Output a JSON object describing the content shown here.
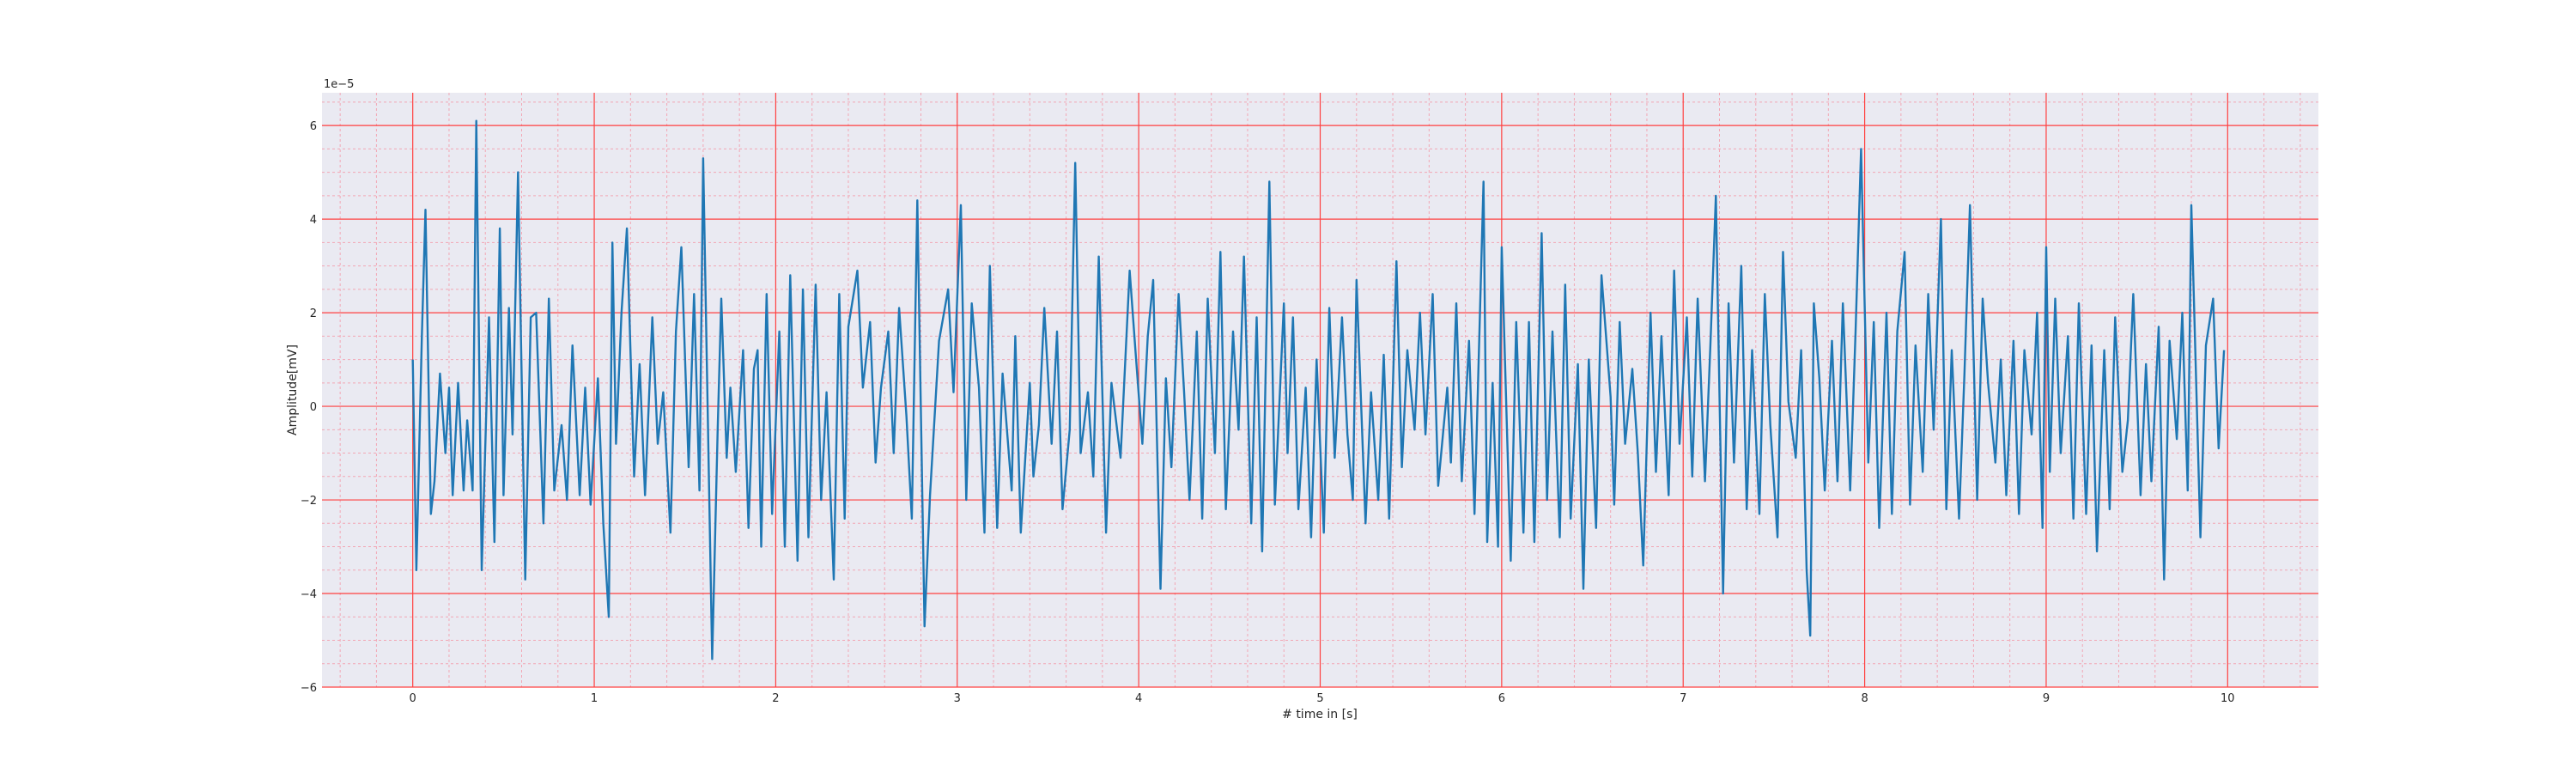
{
  "chart_data": {
    "type": "line",
    "title": "",
    "xlabel": "# time in [s]",
    "ylabel": "Amplitude[mV]",
    "y_offset_label": "1e−5",
    "xlim": [
      -0.5,
      10.5
    ],
    "ylim": [
      -6,
      6.7
    ],
    "xticks": [
      0,
      1,
      2,
      3,
      4,
      5,
      6,
      7,
      8,
      9,
      10
    ],
    "yticks": [
      -6,
      -4,
      -2,
      0,
      2,
      4,
      6
    ],
    "grid": true,
    "minor_grid": true,
    "colors": {
      "line": "#1f77b4",
      "background": "#eaeaf2",
      "major_grid": "#ff4040",
      "minor_grid": "#f2a6b4"
    },
    "series": [
      {
        "points": [
          [
            0.0,
            1.0
          ],
          [
            0.02,
            -3.5
          ],
          [
            0.05,
            1.5
          ],
          [
            0.07,
            4.2
          ],
          [
            0.1,
            -2.3
          ],
          [
            0.12,
            -1.6
          ],
          [
            0.15,
            0.7
          ],
          [
            0.18,
            -1.0
          ],
          [
            0.2,
            0.4
          ],
          [
            0.22,
            -1.9
          ],
          [
            0.25,
            0.5
          ],
          [
            0.28,
            -1.8
          ],
          [
            0.3,
            -0.3
          ],
          [
            0.33,
            -1.8
          ],
          [
            0.35,
            6.1
          ],
          [
            0.38,
            -3.5
          ],
          [
            0.42,
            1.9
          ],
          [
            0.45,
            -2.9
          ],
          [
            0.48,
            3.8
          ],
          [
            0.5,
            -1.9
          ],
          [
            0.53,
            2.1
          ],
          [
            0.55,
            -0.6
          ],
          [
            0.58,
            5.0
          ],
          [
            0.62,
            -3.7
          ],
          [
            0.65,
            1.9
          ],
          [
            0.68,
            2.0
          ],
          [
            0.72,
            -2.5
          ],
          [
            0.75,
            2.3
          ],
          [
            0.78,
            -1.8
          ],
          [
            0.82,
            -0.4
          ],
          [
            0.85,
            -2.0
          ],
          [
            0.88,
            1.3
          ],
          [
            0.92,
            -1.9
          ],
          [
            0.95,
            0.4
          ],
          [
            0.98,
            -2.1
          ],
          [
            1.02,
            0.6
          ],
          [
            1.05,
            -2.5
          ],
          [
            1.08,
            -4.5
          ],
          [
            1.1,
            3.5
          ],
          [
            1.12,
            -0.8
          ],
          [
            1.15,
            2.0
          ],
          [
            1.18,
            3.8
          ],
          [
            1.22,
            -1.5
          ],
          [
            1.25,
            0.9
          ],
          [
            1.28,
            -1.9
          ],
          [
            1.32,
            1.9
          ],
          [
            1.35,
            -0.8
          ],
          [
            1.38,
            0.3
          ],
          [
            1.42,
            -2.7
          ],
          [
            1.45,
            1.6
          ],
          [
            1.48,
            3.4
          ],
          [
            1.52,
            -1.3
          ],
          [
            1.55,
            2.4
          ],
          [
            1.58,
            -1.8
          ],
          [
            1.6,
            5.3
          ],
          [
            1.62,
            1.0
          ],
          [
            1.65,
            -5.4
          ],
          [
            1.68,
            -0.5
          ],
          [
            1.7,
            2.3
          ],
          [
            1.73,
            -1.1
          ],
          [
            1.75,
            0.4
          ],
          [
            1.78,
            -1.4
          ],
          [
            1.82,
            1.2
          ],
          [
            1.85,
            -2.6
          ],
          [
            1.88,
            0.8
          ],
          [
            1.9,
            1.2
          ],
          [
            1.92,
            -3.0
          ],
          [
            1.95,
            2.4
          ],
          [
            1.98,
            -2.3
          ],
          [
            2.02,
            1.6
          ],
          [
            2.05,
            -3.0
          ],
          [
            2.08,
            2.8
          ],
          [
            2.12,
            -3.3
          ],
          [
            2.15,
            2.5
          ],
          [
            2.18,
            -2.8
          ],
          [
            2.22,
            2.6
          ],
          [
            2.25,
            -2.0
          ],
          [
            2.28,
            0.3
          ],
          [
            2.32,
            -3.7
          ],
          [
            2.35,
            2.4
          ],
          [
            2.38,
            -2.4
          ],
          [
            2.4,
            1.7
          ],
          [
            2.45,
            2.9
          ],
          [
            2.48,
            0.4
          ],
          [
            2.52,
            1.8
          ],
          [
            2.55,
            -1.2
          ],
          [
            2.58,
            0.4
          ],
          [
            2.62,
            1.6
          ],
          [
            2.65,
            -1.0
          ],
          [
            2.68,
            2.1
          ],
          [
            2.72,
            -0.2
          ],
          [
            2.75,
            -2.4
          ],
          [
            2.78,
            4.4
          ],
          [
            2.82,
            -4.7
          ],
          [
            2.85,
            -1.9
          ],
          [
            2.9,
            1.4
          ],
          [
            2.95,
            2.5
          ],
          [
            2.98,
            0.3
          ],
          [
            3.02,
            4.3
          ],
          [
            3.05,
            -2.0
          ],
          [
            3.08,
            2.2
          ],
          [
            3.12,
            0.4
          ],
          [
            3.15,
            -2.7
          ],
          [
            3.18,
            3.0
          ],
          [
            3.22,
            -2.6
          ],
          [
            3.25,
            0.7
          ],
          [
            3.3,
            -1.8
          ],
          [
            3.32,
            1.5
          ],
          [
            3.35,
            -2.7
          ],
          [
            3.4,
            0.5
          ],
          [
            3.42,
            -1.5
          ],
          [
            3.45,
            -0.4
          ],
          [
            3.48,
            2.1
          ],
          [
            3.52,
            -0.8
          ],
          [
            3.55,
            1.6
          ],
          [
            3.58,
            -2.2
          ],
          [
            3.62,
            -0.5
          ],
          [
            3.65,
            5.2
          ],
          [
            3.68,
            -1.0
          ],
          [
            3.72,
            0.3
          ],
          [
            3.75,
            -1.5
          ],
          [
            3.78,
            3.2
          ],
          [
            3.82,
            -2.7
          ],
          [
            3.85,
            0.5
          ],
          [
            3.9,
            -1.1
          ],
          [
            3.95,
            2.9
          ],
          [
            3.98,
            1.3
          ],
          [
            4.02,
            -0.8
          ],
          [
            4.05,
            1.5
          ],
          [
            4.08,
            2.7
          ],
          [
            4.12,
            -3.9
          ],
          [
            4.15,
            0.6
          ],
          [
            4.18,
            -1.3
          ],
          [
            4.22,
            2.4
          ],
          [
            4.25,
            0.3
          ],
          [
            4.28,
            -2.0
          ],
          [
            4.32,
            1.6
          ],
          [
            4.35,
            -2.4
          ],
          [
            4.38,
            2.3
          ],
          [
            4.42,
            -1.0
          ],
          [
            4.45,
            3.3
          ],
          [
            4.48,
            -2.2
          ],
          [
            4.52,
            1.6
          ],
          [
            4.55,
            -0.5
          ],
          [
            4.58,
            3.2
          ],
          [
            4.62,
            -2.5
          ],
          [
            4.65,
            1.9
          ],
          [
            4.68,
            -3.1
          ],
          [
            4.72,
            4.8
          ],
          [
            4.75,
            -2.1
          ],
          [
            4.8,
            2.2
          ],
          [
            4.82,
            -1.0
          ],
          [
            4.85,
            1.9
          ],
          [
            4.88,
            -2.2
          ],
          [
            4.92,
            0.4
          ],
          [
            4.95,
            -2.8
          ],
          [
            4.98,
            1.0
          ],
          [
            5.02,
            -2.7
          ],
          [
            5.05,
            2.1
          ],
          [
            5.08,
            -1.1
          ],
          [
            5.12,
            1.9
          ],
          [
            5.15,
            -0.6
          ],
          [
            5.18,
            -2.0
          ],
          [
            5.2,
            2.7
          ],
          [
            5.25,
            -2.5
          ],
          [
            5.28,
            0.3
          ],
          [
            5.32,
            -2.0
          ],
          [
            5.35,
            1.1
          ],
          [
            5.38,
            -2.4
          ],
          [
            5.42,
            3.1
          ],
          [
            5.45,
            -1.3
          ],
          [
            5.48,
            1.2
          ],
          [
            5.52,
            -0.5
          ],
          [
            5.55,
            2.0
          ],
          [
            5.58,
            -0.6
          ],
          [
            5.62,
            2.4
          ],
          [
            5.65,
            -1.7
          ],
          [
            5.7,
            0.4
          ],
          [
            5.72,
            -1.2
          ],
          [
            5.75,
            2.2
          ],
          [
            5.78,
            -1.6
          ],
          [
            5.82,
            1.4
          ],
          [
            5.85,
            -2.3
          ],
          [
            5.9,
            4.8
          ],
          [
            5.92,
            -2.9
          ],
          [
            5.95,
            0.5
          ],
          [
            5.98,
            -3.0
          ],
          [
            6.0,
            3.4
          ],
          [
            6.05,
            -3.3
          ],
          [
            6.08,
            1.8
          ],
          [
            6.12,
            -2.7
          ],
          [
            6.15,
            1.8
          ],
          [
            6.18,
            -2.9
          ],
          [
            6.22,
            3.7
          ],
          [
            6.25,
            -2.0
          ],
          [
            6.28,
            1.6
          ],
          [
            6.32,
            -2.8
          ],
          [
            6.35,
            2.6
          ],
          [
            6.38,
            -2.4
          ],
          [
            6.42,
            0.9
          ],
          [
            6.45,
            -3.9
          ],
          [
            6.48,
            1.0
          ],
          [
            6.52,
            -2.6
          ],
          [
            6.55,
            2.8
          ],
          [
            6.6,
            0.2
          ],
          [
            6.62,
            -2.1
          ],
          [
            6.65,
            1.8
          ],
          [
            6.68,
            -0.8
          ],
          [
            6.72,
            0.8
          ],
          [
            6.75,
            -1.0
          ],
          [
            6.78,
            -3.4
          ],
          [
            6.82,
            2.0
          ],
          [
            6.85,
            -1.4
          ],
          [
            6.88,
            1.5
          ],
          [
            6.92,
            -1.9
          ],
          [
            6.95,
            2.9
          ],
          [
            6.98,
            -0.8
          ],
          [
            7.02,
            1.9
          ],
          [
            7.05,
            -1.5
          ],
          [
            7.08,
            2.3
          ],
          [
            7.12,
            -1.6
          ],
          [
            7.15,
            1.3
          ],
          [
            7.18,
            4.5
          ],
          [
            7.22,
            -4.0
          ],
          [
            7.25,
            2.2
          ],
          [
            7.28,
            -1.2
          ],
          [
            7.32,
            3.0
          ],
          [
            7.35,
            -2.2
          ],
          [
            7.38,
            1.2
          ],
          [
            7.42,
            -2.3
          ],
          [
            7.45,
            2.4
          ],
          [
            7.48,
            -0.4
          ],
          [
            7.52,
            -2.8
          ],
          [
            7.55,
            3.3
          ],
          [
            7.58,
            0.1
          ],
          [
            7.62,
            -1.1
          ],
          [
            7.65,
            1.2
          ],
          [
            7.68,
            -3.5
          ],
          [
            7.7,
            -4.9
          ],
          [
            7.72,
            2.2
          ],
          [
            7.75,
            0.6
          ],
          [
            7.78,
            -1.8
          ],
          [
            7.82,
            1.4
          ],
          [
            7.85,
            -1.6
          ],
          [
            7.88,
            2.2
          ],
          [
            7.92,
            -1.8
          ],
          [
            7.95,
            1.6
          ],
          [
            7.98,
            5.5
          ],
          [
            8.02,
            -1.2
          ],
          [
            8.05,
            1.8
          ],
          [
            8.08,
            -2.6
          ],
          [
            8.12,
            2.0
          ],
          [
            8.15,
            -2.3
          ],
          [
            8.18,
            1.6
          ],
          [
            8.22,
            3.3
          ],
          [
            8.25,
            -2.1
          ],
          [
            8.28,
            1.3
          ],
          [
            8.32,
            -1.4
          ],
          [
            8.35,
            2.4
          ],
          [
            8.38,
            -0.5
          ],
          [
            8.42,
            4.0
          ],
          [
            8.45,
            -2.2
          ],
          [
            8.48,
            1.2
          ],
          [
            8.52,
            -2.4
          ],
          [
            8.55,
            0.7
          ],
          [
            8.58,
            4.3
          ],
          [
            8.62,
            -2.0
          ],
          [
            8.65,
            2.3
          ],
          [
            8.68,
            0.5
          ],
          [
            8.72,
            -1.2
          ],
          [
            8.75,
            1.0
          ],
          [
            8.78,
            -1.9
          ],
          [
            8.82,
            1.4
          ],
          [
            8.85,
            -2.3
          ],
          [
            8.88,
            1.2
          ],
          [
            8.92,
            -0.6
          ],
          [
            8.95,
            2.0
          ],
          [
            8.98,
            -2.6
          ],
          [
            9.0,
            3.4
          ],
          [
            9.02,
            -1.4
          ],
          [
            9.05,
            2.3
          ],
          [
            9.08,
            -1.0
          ],
          [
            9.12,
            1.5
          ],
          [
            9.15,
            -2.4
          ],
          [
            9.18,
            2.2
          ],
          [
            9.22,
            -2.3
          ],
          [
            9.25,
            1.3
          ],
          [
            9.28,
            -3.1
          ],
          [
            9.32,
            1.2
          ],
          [
            9.35,
            -2.2
          ],
          [
            9.38,
            1.9
          ],
          [
            9.42,
            -1.4
          ],
          [
            9.45,
            -0.3
          ],
          [
            9.48,
            2.4
          ],
          [
            9.52,
            -1.9
          ],
          [
            9.55,
            0.9
          ],
          [
            9.58,
            -1.6
          ],
          [
            9.62,
            1.7
          ],
          [
            9.65,
            -3.7
          ],
          [
            9.68,
            1.4
          ],
          [
            9.72,
            -0.7
          ],
          [
            9.75,
            2.0
          ],
          [
            9.78,
            -1.8
          ],
          [
            9.8,
            4.3
          ],
          [
            9.85,
            -2.8
          ],
          [
            9.88,
            1.3
          ],
          [
            9.92,
            2.3
          ],
          [
            9.95,
            -0.9
          ],
          [
            9.98,
            1.2
          ]
        ]
      }
    ]
  }
}
